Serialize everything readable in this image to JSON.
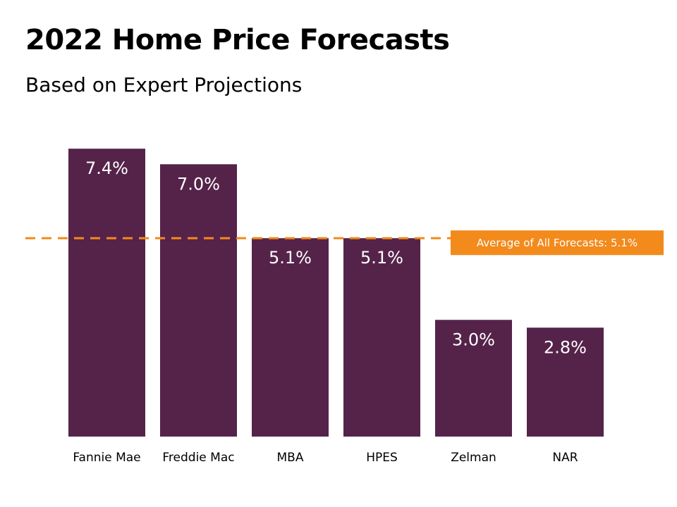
{
  "chart_data": {
    "type": "bar",
    "title": "2022 Home Price Forecasts",
    "subtitle": "Based on Expert Projections",
    "categories": [
      "Fannie Mae",
      "Freddie Mac",
      "MBA",
      "HPES",
      "Zelman",
      "NAR"
    ],
    "values": [
      7.4,
      7.0,
      5.1,
      5.1,
      3.0,
      2.8
    ],
    "value_labels": [
      "7.4%",
      "7.0%",
      "5.1%",
      "5.1%",
      "3.0%",
      "2.8%"
    ],
    "average": {
      "value": 5.1,
      "label": "Average of All Forecasts: 5.1%"
    },
    "xlabel": "",
    "ylabel": "",
    "ylim": [
      0,
      8
    ],
    "grid": false,
    "bar_color": "#55234a",
    "average_color": "#f28a1c"
  }
}
